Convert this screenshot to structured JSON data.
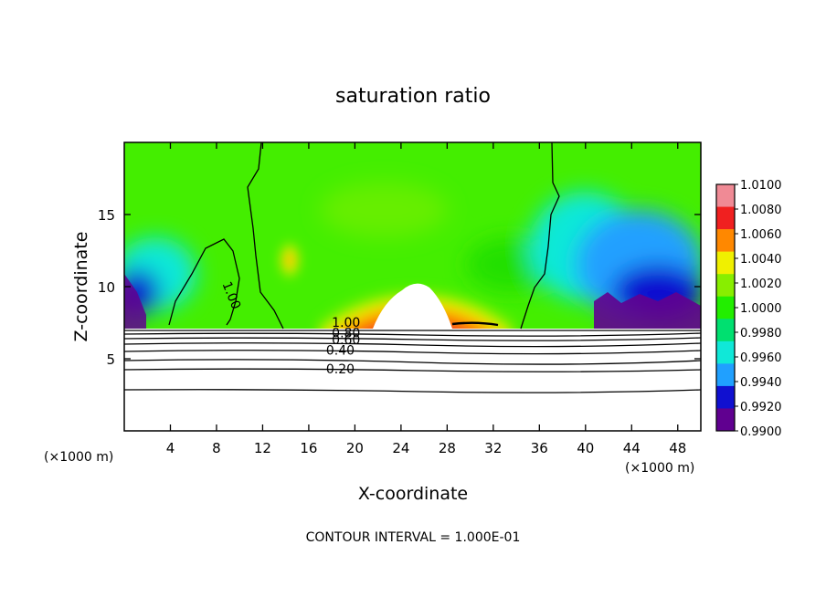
{
  "chart_data": {
    "type": "heatmap",
    "title": "saturation ratio",
    "xlabel": "X-coordinate",
    "ylabel": "Z-coordinate",
    "x_unit_label": "(×1000 m)",
    "y_unit_label": "(×1000 m)",
    "xlim": [
      0,
      50
    ],
    "ylim": [
      0,
      20
    ],
    "x_ticks": [
      4,
      8,
      12,
      16,
      20,
      24,
      28,
      32,
      36,
      40,
      44,
      48
    ],
    "y_ticks": [
      5,
      10,
      15
    ],
    "footer": "CONTOUR INTERVAL = 1.000E-01",
    "colorbar": {
      "ticks": [
        "1.0100",
        "1.0080",
        "1.0060",
        "1.0040",
        "1.0020",
        "1.0000",
        "0.9980",
        "0.9960",
        "0.9940",
        "0.9920",
        "0.9900"
      ],
      "colors": [
        "#f08a95",
        "#f02020",
        "#ff8800",
        "#f0f000",
        "#88ee00",
        "#22ee00",
        "#00e070",
        "#10e8d8",
        "#20a0ff",
        "#1010d0",
        "#600090"
      ]
    },
    "contour_labels": [
      {
        "text": "1.00",
        "x": 8.5,
        "z": 10.2
      },
      {
        "text": "1.00",
        "x": 18.0,
        "z": 7.2
      },
      {
        "text": "0.80",
        "x": 18.0,
        "z": 6.5
      },
      {
        "text": "0.60",
        "x": 18.0,
        "z": 6.0
      },
      {
        "text": "0.40",
        "x": 17.5,
        "z": 5.3
      },
      {
        "text": "0.20",
        "x": 17.5,
        "z": 4.0
      }
    ]
  }
}
